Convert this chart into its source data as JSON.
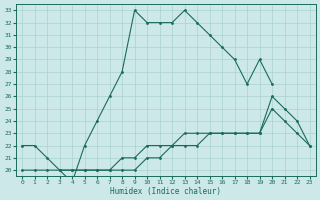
{
  "title": "",
  "xlabel": "Humidex (Indice chaleur)",
  "bg_color": "#cce8e8",
  "line_color": "#1a6b5a",
  "grid_color": "#aad0d0",
  "series1_x": [
    0,
    1,
    2,
    3,
    4,
    5,
    6,
    7,
    8,
    9,
    10,
    11,
    12,
    13,
    14,
    15,
    16,
    17,
    18,
    19,
    20
  ],
  "series1_y": [
    22,
    22,
    21,
    20,
    19,
    22,
    24,
    26,
    28,
    33,
    32,
    32,
    32,
    33,
    32,
    31,
    30,
    29,
    27,
    29,
    27
  ],
  "series2_x": [
    0,
    1,
    2,
    3,
    4,
    5,
    6,
    7,
    8,
    9,
    10,
    11,
    12,
    13,
    14,
    15,
    16,
    17,
    18,
    19,
    20,
    21,
    22,
    23
  ],
  "series2_y": [
    20,
    20,
    20,
    20,
    20,
    20,
    20,
    20,
    21,
    21,
    22,
    22,
    22,
    23,
    23,
    23,
    23,
    23,
    23,
    23,
    25,
    24,
    23,
    22
  ],
  "series3_x": [
    3,
    4,
    5,
    6,
    7,
    8,
    9,
    10,
    11,
    12,
    13,
    14,
    15,
    16,
    17,
    18,
    19,
    20,
    21,
    22,
    23
  ],
  "series3_y": [
    20,
    20,
    20,
    20,
    20,
    20,
    20,
    21,
    21,
    22,
    22,
    22,
    23,
    23,
    23,
    23,
    23,
    26,
    25,
    24,
    22
  ],
  "xlim": [
    -0.5,
    23.5
  ],
  "ylim": [
    19.5,
    33.5
  ],
  "yticks": [
    20,
    21,
    22,
    23,
    24,
    25,
    26,
    27,
    28,
    29,
    30,
    31,
    32,
    33
  ],
  "xticks": [
    0,
    1,
    2,
    3,
    4,
    5,
    6,
    7,
    8,
    9,
    10,
    11,
    12,
    13,
    14,
    15,
    16,
    17,
    18,
    19,
    20,
    21,
    22,
    23
  ]
}
